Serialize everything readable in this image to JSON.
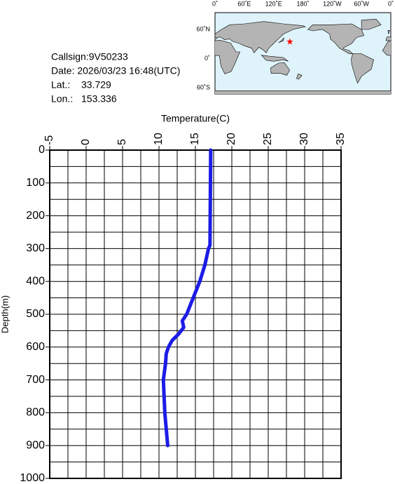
{
  "info": {
    "callsign": "Callsign:9V50233",
    "date": "Date:  2026/03/23 16:48(UTC)",
    "lat": {
      "label": "Lat.:",
      "value": 33.729
    },
    "lon": {
      "label": "Lon.:",
      "value": 153.336
    }
  },
  "map": {
    "lonlabels": [
      "0˚",
      "60˚E",
      "120˚E",
      "180˚",
      "120˚W",
      "60˚W",
      "0˚"
    ],
    "latlabels": [
      "60˚N",
      "0˚",
      "60˚S"
    ]
  },
  "chart_data": {
    "type": "profile",
    "xlabel": "Temperature(C)",
    "ylabel": "Depth(m)",
    "depth": [
      0,
      290,
      300,
      350,
      400,
      450,
      500,
      520,
      540,
      560,
      580,
      600,
      620,
      650,
      700,
      750,
      800,
      850,
      900
    ],
    "values": [
      17.1,
      17.0,
      16.8,
      16.3,
      15.6,
      14.7,
      13.8,
      13.2,
      13.4,
      12.7,
      11.8,
      11.3,
      11.0,
      10.9,
      10.6,
      10.7,
      10.8,
      11.0,
      11.2
    ],
    "color": "#1c1ce6",
    "xlim": [
      -5,
      35
    ],
    "xticks": [
      -5,
      0,
      5,
      10,
      15,
      20,
      25,
      30,
      35
    ],
    "ylim": [
      0,
      1000
    ],
    "yticks": [
      0,
      100,
      200,
      300,
      400,
      500,
      600,
      700,
      800,
      900,
      1000
    ],
    "xgrid": [
      -2.5,
      0,
      2.5,
      5,
      7.5,
      10,
      12.5,
      15,
      17.5,
      20,
      22.5,
      25,
      27.5,
      30,
      32.5
    ],
    "ygrid": [
      50,
      100,
      150,
      200,
      250,
      300,
      350,
      400,
      450,
      500,
      550,
      600,
      650,
      700,
      750,
      800,
      850,
      900,
      950
    ],
    "grid": true,
    "y_inverted": true
  }
}
